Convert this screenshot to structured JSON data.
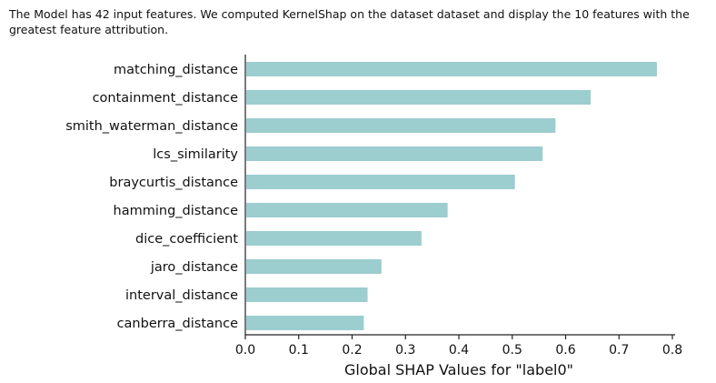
{
  "intro": {
    "text": "The Model has  42  input features. We computed KernelShap on the dataset  dataset  and display the  10  features with the greatest feature attribution."
  },
  "chart_data": {
    "type": "bar",
    "orientation": "horizontal",
    "categories": [
      "matching_distance",
      "containment_distance",
      "smith_waterman_distance",
      "lcs_similarity",
      "braycurtis_distance",
      "hamming_distance",
      "dice_coefficient",
      "jaro_distance",
      "interval_distance",
      "canberra_distance"
    ],
    "values": [
      0.771,
      0.647,
      0.581,
      0.557,
      0.505,
      0.379,
      0.33,
      0.255,
      0.229,
      0.222
    ],
    "xlabel": "Global SHAP Values for \"label0\"",
    "ylabel": "",
    "xlim": [
      0.0,
      0.8
    ],
    "xticks": [
      "0.0",
      "0.1",
      "0.2",
      "0.3",
      "0.4",
      "0.5",
      "0.6",
      "0.7",
      "0.8"
    ],
    "bar_color": "#9ccdcf",
    "grid": false
  }
}
